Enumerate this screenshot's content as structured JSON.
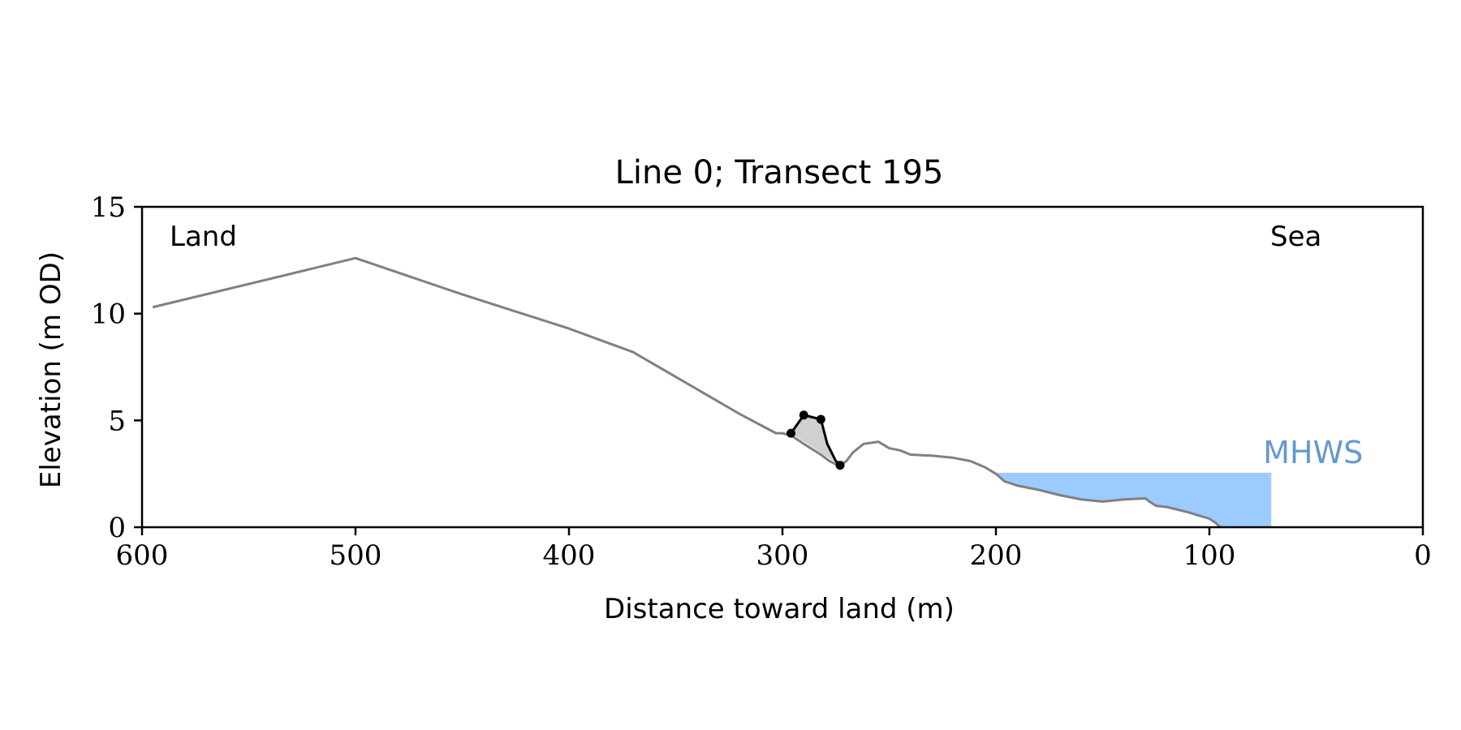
{
  "chart_data": {
    "type": "line",
    "title": "Line 0; Transect 195",
    "xlabel": "Distance toward land (m)",
    "ylabel": "Elevation (m OD)",
    "xlim": [
      600,
      0
    ],
    "ylim": [
      0,
      15
    ],
    "x_ticks": [
      600,
      500,
      400,
      300,
      200,
      100,
      0
    ],
    "y_ticks": [
      0,
      5,
      10,
      15
    ],
    "grid": false,
    "legend": "none",
    "annotations": {
      "land_label": "Land",
      "sea_label": "Sea",
      "mhws_label": "MHWS"
    },
    "colors": {
      "profile": "#808080",
      "feature": "#000000",
      "feature_fill": "#d0d0d0",
      "mhws_fill": "#9ccbff",
      "mhws_text": "#6699cc"
    },
    "series": [
      {
        "role": "profile",
        "x": [
          595,
          500,
          450,
          400,
          370,
          320,
          303,
          300,
          296,
          290,
          282,
          278,
          275,
          273,
          270,
          267,
          262,
          255,
          250,
          245,
          240,
          230,
          220,
          212,
          205,
          200,
          196,
          190,
          180,
          170,
          160,
          150,
          140,
          130,
          128,
          125,
          120,
          110,
          100,
          97,
          95
        ],
        "y": [
          10.3,
          12.6,
          10.9,
          9.3,
          8.2,
          5.3,
          4.4,
          4.4,
          4.3,
          3.9,
          3.4,
          3.1,
          2.95,
          2.9,
          3.1,
          3.5,
          3.9,
          4.0,
          3.7,
          3.6,
          3.4,
          3.35,
          3.25,
          3.1,
          2.8,
          2.5,
          2.15,
          1.95,
          1.75,
          1.5,
          1.3,
          1.2,
          1.3,
          1.35,
          1.2,
          1.0,
          0.95,
          0.7,
          0.4,
          0.2,
          0.0
        ]
      },
      {
        "role": "feature",
        "x": [
          296,
          290,
          282,
          279,
          277,
          275,
          273
        ],
        "y": [
          4.4,
          5.25,
          5.05,
          3.9,
          3.5,
          3.1,
          2.9
        ],
        "markers_x": [
          296,
          290,
          282,
          273
        ],
        "markers_y": [
          4.4,
          5.25,
          5.05,
          2.9
        ]
      }
    ],
    "mhws": {
      "level": 2.55,
      "x_start": 200,
      "x_end": 71
    }
  }
}
